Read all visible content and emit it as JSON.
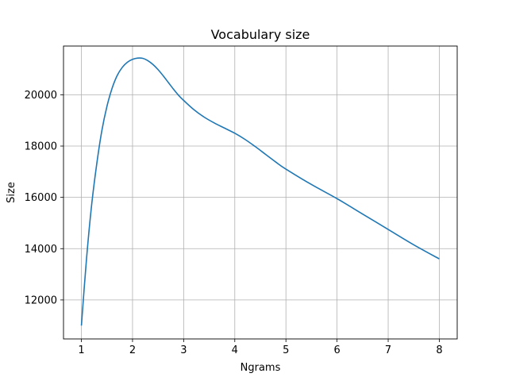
{
  "chart_data": {
    "type": "line",
    "title": "Vocabulary size",
    "xlabel": "Ngrams",
    "ylabel": "Size",
    "xlim": [
      0.65,
      8.35
    ],
    "ylim": [
      10480,
      21900
    ],
    "xticks": [
      1,
      2,
      3,
      4,
      5,
      6,
      7,
      8
    ],
    "yticks": [
      12000,
      14000,
      16000,
      18000,
      20000
    ],
    "grid": true,
    "line_color": "#1f77b4",
    "series": [
      {
        "x": [
          1.0,
          1.1,
          1.2,
          1.3,
          1.4,
          1.5,
          1.6,
          1.7,
          1.8,
          1.9,
          2.0,
          2.1,
          2.2,
          2.3,
          2.4,
          2.5,
          2.6,
          2.7,
          2.8,
          2.9,
          3.0,
          3.2,
          3.4,
          3.6,
          3.8,
          4.0,
          4.2,
          4.4,
          4.6,
          4.8,
          5.0,
          5.5,
          6.0,
          6.5,
          7.0,
          7.5,
          8.0
        ],
        "y": [
          11000,
          13600,
          15700,
          17300,
          18600,
          19550,
          20250,
          20750,
          21070,
          21270,
          21380,
          21430,
          21420,
          21330,
          21180,
          20980,
          20740,
          20480,
          20220,
          19980,
          19780,
          19420,
          19130,
          18900,
          18700,
          18500,
          18260,
          17980,
          17680,
          17380,
          17100,
          16500,
          15950,
          15350,
          14750,
          14150,
          13600
        ]
      }
    ]
  }
}
